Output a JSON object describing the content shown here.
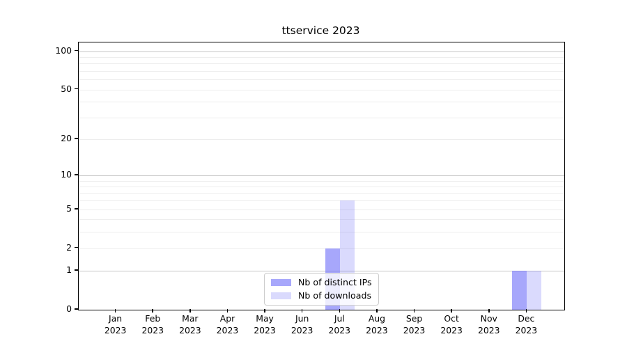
{
  "chart_data": {
    "type": "bar",
    "title": "ttservice 2023",
    "scale": "symlog",
    "categories": [
      "Jan",
      "Feb",
      "Mar",
      "Apr",
      "May",
      "Jun",
      "Jul",
      "Aug",
      "Sep",
      "Oct",
      "Nov",
      "Dec"
    ],
    "category_sub_label": "2023",
    "series": [
      {
        "name": "Nb of distinct IPs",
        "color": "rgba(108,108,248,0.6)",
        "values": [
          0,
          0,
          0,
          0,
          0,
          0,
          2,
          0,
          0,
          0,
          0,
          1
        ]
      },
      {
        "name": "Nb of downloads",
        "color": "rgba(108,108,248,0.25)",
        "values": [
          0,
          0,
          0,
          0,
          0,
          0,
          6,
          0,
          0,
          0,
          0,
          1
        ]
      }
    ],
    "y_ticks": [
      0,
      1,
      2,
      5,
      10,
      20,
      50,
      100
    ],
    "y_major_grid": [
      1,
      10,
      100
    ],
    "y_minor_grid": [
      2,
      3,
      4,
      5,
      6,
      7,
      8,
      9,
      20,
      30,
      40,
      50,
      60,
      70,
      80,
      90
    ],
    "ylim": [
      0,
      117
    ],
    "legend_position": "lower center",
    "grid": true
  },
  "colors": {
    "major_grid": "#c6c6c6",
    "minor_grid": "#ededed",
    "axis": "#000000",
    "legend_border": "#cccccc"
  }
}
